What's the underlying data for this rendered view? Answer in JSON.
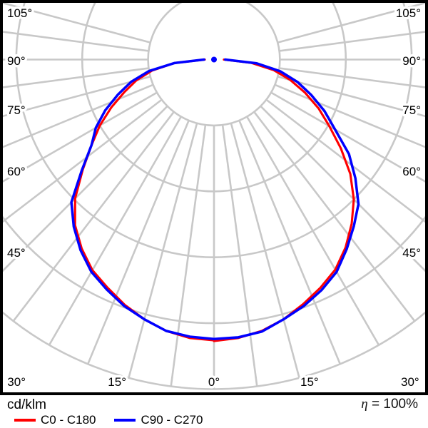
{
  "legend": {
    "unit_label": "cd/klm",
    "eta_symbol": "η",
    "eta_value": "= 100%",
    "items": [
      {
        "label": "C0 - C180",
        "color": "#ff0000"
      },
      {
        "label": "C90 - C270",
        "color": "#0000ff"
      }
    ]
  },
  "chart_data": {
    "type": "polar",
    "subtype": "luminous-intensity-distribution",
    "unit": "cd/klm",
    "efficiency_text": "η = 100%",
    "grid": {
      "rings_radius_fraction": [
        0.2,
        0.4,
        0.6,
        0.8,
        1.0
      ],
      "rings_numerically_labeled": false,
      "spoke_step_deg": 7.5,
      "max_spoke_angle_deg": 105,
      "color": "#c8c8c8"
    },
    "axis_labels": {
      "left": [
        "105°",
        "90°",
        "75°",
        "60°",
        "45°"
      ],
      "right": [
        "105°",
        "90°",
        "75°",
        "60°",
        "45°"
      ],
      "bottom": [
        "30°",
        "15°",
        "0°",
        "15°",
        "30°"
      ]
    },
    "gamma_angles_deg": [
      0,
      5,
      10,
      15,
      20,
      25,
      30,
      35,
      40,
      45,
      50,
      55,
      60,
      65,
      70,
      75,
      80,
      85,
      90
    ],
    "radius_values_are": "fraction of outermost ring radius (rings carry no numeric labels in the image)",
    "series": [
      {
        "name": "C0 - C180",
        "color": "#ff0000",
        "left": [
          0.852,
          0.848,
          0.836,
          0.816,
          0.792,
          0.764,
          0.738,
          0.7,
          0.656,
          0.596,
          0.52,
          0.454,
          0.4,
          0.344,
          0.29,
          0.244,
          0.19,
          0.12,
          0.028
        ],
        "right": [
          0.854,
          0.848,
          0.836,
          0.816,
          0.79,
          0.764,
          0.736,
          0.696,
          0.65,
          0.6,
          0.54,
          0.47,
          0.404,
          0.35,
          0.294,
          0.24,
          0.184,
          0.114,
          0.03
        ]
      },
      {
        "name": "C90 - C270",
        "color": "#0000ff",
        "left": [
          0.848,
          0.844,
          0.836,
          0.816,
          0.796,
          0.77,
          0.744,
          0.706,
          0.662,
          0.612,
          0.524,
          0.454,
          0.414,
          0.364,
          0.31,
          0.26,
          0.2,
          0.12,
          0.03
        ],
        "right": [
          0.848,
          0.846,
          0.838,
          0.816,
          0.796,
          0.772,
          0.744,
          0.702,
          0.66,
          0.62,
          0.56,
          0.5,
          0.424,
          0.37,
          0.314,
          0.262,
          0.204,
          0.13,
          0.034
        ]
      }
    ],
    "center_marker_color": "#0000ff"
  }
}
